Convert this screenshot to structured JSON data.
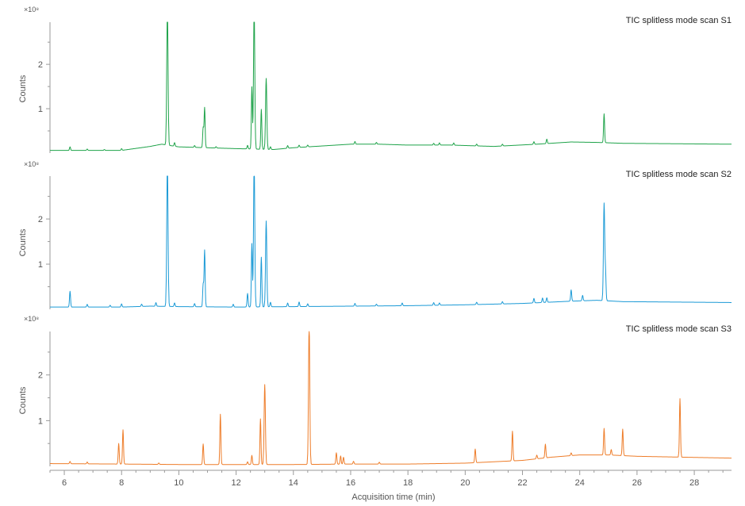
{
  "chart_data": {
    "type": "line",
    "x_axis": {
      "label": "Acquisition time (min)",
      "range": [
        5.5,
        29.3
      ],
      "ticks": [
        6,
        8,
        10,
        12,
        14,
        16,
        18,
        20,
        22,
        24,
        26,
        28
      ],
      "tick_labels": [
        "6",
        "8",
        "10",
        "12",
        "14",
        "16",
        "18",
        "20",
        "22",
        "24",
        "26",
        "28"
      ],
      "minor_tick_step": 0.5
    },
    "y_axis": {
      "label": "Counts",
      "multiplier_label": "×10⁸",
      "range": [
        0,
        2.95
      ],
      "ticks": [
        1,
        2
      ],
      "tick_labels": [
        "1",
        "2"
      ],
      "minor_tick_step": 0.5
    },
    "grid": false,
    "panels": [
      {
        "title": "TIC splitless mode scan S1",
        "color": "#1fa34a",
        "baseline": [
          [
            5.5,
            0.06
          ],
          [
            8.0,
            0.06
          ],
          [
            9.0,
            0.15
          ],
          [
            9.4,
            0.2
          ],
          [
            10.0,
            0.14
          ],
          [
            12.0,
            0.1
          ],
          [
            13.3,
            0.08
          ],
          [
            14.0,
            0.12
          ],
          [
            15.0,
            0.16
          ],
          [
            16.0,
            0.2
          ],
          [
            17.0,
            0.2
          ],
          [
            18.0,
            0.18
          ],
          [
            19.5,
            0.18
          ],
          [
            21.0,
            0.15
          ],
          [
            22.5,
            0.2
          ],
          [
            23.7,
            0.25
          ],
          [
            24.6,
            0.24
          ],
          [
            25.5,
            0.22
          ],
          [
            29.3,
            0.2
          ]
        ],
        "peaks": [
          [
            6.2,
            0.08
          ],
          [
            6.8,
            0.03
          ],
          [
            7.4,
            0.02
          ],
          [
            8.0,
            0.04
          ],
          [
            9.6,
            3.2
          ],
          [
            9.85,
            0.08
          ],
          [
            10.55,
            0.04
          ],
          [
            10.85,
            0.45
          ],
          [
            10.9,
            0.9
          ],
          [
            11.3,
            0.03
          ],
          [
            12.4,
            0.08
          ],
          [
            12.55,
            1.4
          ],
          [
            12.63,
            3.2
          ],
          [
            12.88,
            0.9
          ],
          [
            13.05,
            1.6
          ],
          [
            13.2,
            0.06
          ],
          [
            13.8,
            0.06
          ],
          [
            14.2,
            0.05
          ],
          [
            14.5,
            0.04
          ],
          [
            16.15,
            0.06
          ],
          [
            16.9,
            0.04
          ],
          [
            18.9,
            0.04
          ],
          [
            19.1,
            0.05
          ],
          [
            19.6,
            0.05
          ],
          [
            20.4,
            0.04
          ],
          [
            21.3,
            0.04
          ],
          [
            22.4,
            0.06
          ],
          [
            22.85,
            0.1
          ],
          [
            24.85,
            0.65
          ]
        ]
      },
      {
        "title": "TIC splitless mode scan S2",
        "color": "#1b9ad6",
        "baseline": [
          [
            5.5,
            0.05
          ],
          [
            8.0,
            0.05
          ],
          [
            9.0,
            0.07
          ],
          [
            10.0,
            0.06
          ],
          [
            12.0,
            0.05
          ],
          [
            14.0,
            0.06
          ],
          [
            16.0,
            0.07
          ],
          [
            18.0,
            0.08
          ],
          [
            20.0,
            0.1
          ],
          [
            22.0,
            0.13
          ],
          [
            23.7,
            0.18
          ],
          [
            24.6,
            0.2
          ],
          [
            25.5,
            0.17
          ],
          [
            29.3,
            0.15
          ]
        ],
        "peaks": [
          [
            6.2,
            0.35
          ],
          [
            6.8,
            0.06
          ],
          [
            7.6,
            0.04
          ],
          [
            8.0,
            0.07
          ],
          [
            8.7,
            0.05
          ],
          [
            9.2,
            0.08
          ],
          [
            9.6,
            3.2
          ],
          [
            9.85,
            0.08
          ],
          [
            10.55,
            0.07
          ],
          [
            10.85,
            0.5
          ],
          [
            10.9,
            1.25
          ],
          [
            11.9,
            0.06
          ],
          [
            12.4,
            0.3
          ],
          [
            12.55,
            1.4
          ],
          [
            12.63,
            3.2
          ],
          [
            12.88,
            1.1
          ],
          [
            13.05,
            1.9
          ],
          [
            13.2,
            0.1
          ],
          [
            13.8,
            0.08
          ],
          [
            14.2,
            0.1
          ],
          [
            14.5,
            0.06
          ],
          [
            16.15,
            0.06
          ],
          [
            16.9,
            0.04
          ],
          [
            17.8,
            0.06
          ],
          [
            18.9,
            0.06
          ],
          [
            19.1,
            0.05
          ],
          [
            20.4,
            0.05
          ],
          [
            21.3,
            0.05
          ],
          [
            22.4,
            0.1
          ],
          [
            22.7,
            0.1
          ],
          [
            22.85,
            0.1
          ],
          [
            23.7,
            0.25
          ],
          [
            24.1,
            0.12
          ],
          [
            24.85,
            2.15
          ],
          [
            24.9,
            0.6
          ]
        ]
      },
      {
        "title": "TIC splitless mode scan S3",
        "color": "#ee7d2a",
        "baseline": [
          [
            5.5,
            0.06
          ],
          [
            8.0,
            0.05
          ],
          [
            10.0,
            0.04
          ],
          [
            12.0,
            0.04
          ],
          [
            14.0,
            0.04
          ],
          [
            16.0,
            0.05
          ],
          [
            18.0,
            0.05
          ],
          [
            20.0,
            0.07
          ],
          [
            22.0,
            0.13
          ],
          [
            23.0,
            0.2
          ],
          [
            24.0,
            0.25
          ],
          [
            25.0,
            0.25
          ],
          [
            26.0,
            0.22
          ],
          [
            29.3,
            0.18
          ]
        ],
        "peaks": [
          [
            6.2,
            0.05
          ],
          [
            6.8,
            0.04
          ],
          [
            7.9,
            0.45
          ],
          [
            8.05,
            0.75
          ],
          [
            9.3,
            0.03
          ],
          [
            10.85,
            0.45
          ],
          [
            11.45,
            1.1
          ],
          [
            12.4,
            0.06
          ],
          [
            12.55,
            0.2
          ],
          [
            12.85,
            1.0
          ],
          [
            13.0,
            1.75
          ],
          [
            14.55,
            3.1
          ],
          [
            15.5,
            0.25
          ],
          [
            15.65,
            0.18
          ],
          [
            15.75,
            0.15
          ],
          [
            16.1,
            0.06
          ],
          [
            17.0,
            0.04
          ],
          [
            20.35,
            0.3
          ],
          [
            21.65,
            0.65
          ],
          [
            22.5,
            0.08
          ],
          [
            22.8,
            0.3
          ],
          [
            23.7,
            0.06
          ],
          [
            24.85,
            0.58
          ],
          [
            25.1,
            0.12
          ],
          [
            25.5,
            0.58
          ],
          [
            27.5,
            1.28
          ]
        ]
      }
    ]
  }
}
